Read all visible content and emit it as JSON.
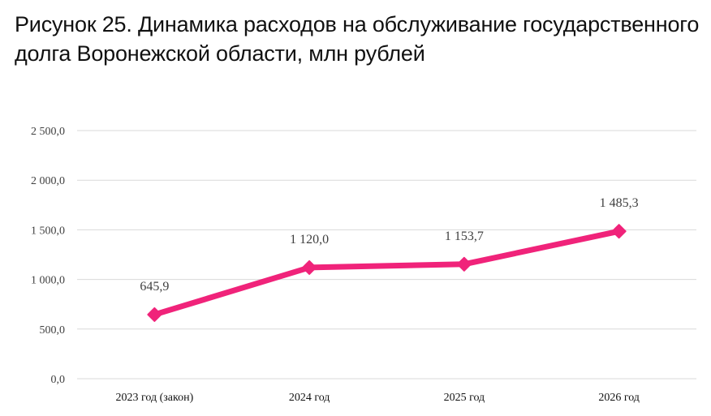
{
  "chart_data": {
    "type": "line",
    "title": "Рисунок 25. Динамика расходов на обслуживание государственного долга Воронежской области, млн рублей",
    "categories": [
      "2023 год (закон)",
      "2024 год",
      "2025 год",
      "2026 год"
    ],
    "series": [
      {
        "values": [
          645.9,
          1120.0,
          1153.7,
          1485.3
        ],
        "data_labels": [
          "645,9",
          "1 120,0",
          "1 153,7",
          "1 485,3"
        ]
      }
    ],
    "yticks": [
      "0,0",
      "500,0",
      "1 000,0",
      "1 500,0",
      "2 000,0",
      "2 500,0"
    ],
    "ylim": [
      0,
      2500
    ],
    "xlabel": "",
    "ylabel": "",
    "grid": true,
    "legend": "none",
    "colors": {
      "line": "#f0237a",
      "grid": "#d9d9d9",
      "text": "#404040"
    }
  }
}
